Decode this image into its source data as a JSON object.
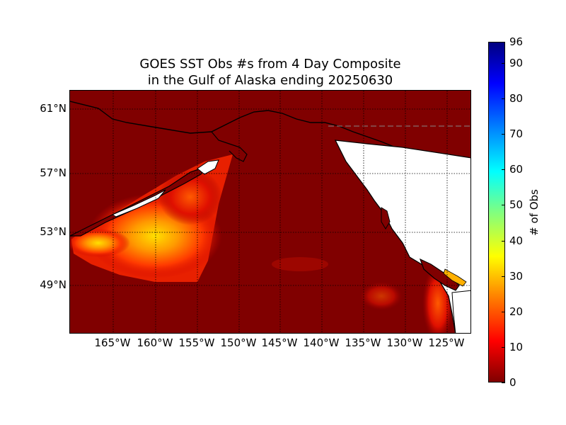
{
  "title": {
    "line1": "GOES SST Obs #s from 4 Day Composite",
    "line2": "in the Gulf of Alaska ending 20250630"
  },
  "map": {
    "lat_labels": [
      "61°N",
      "57°N",
      "53°N",
      "49°N"
    ],
    "lon_labels": [
      "165°W",
      "160°W",
      "155°W",
      "150°W",
      "145°W",
      "140°W",
      "135°W",
      "130°W",
      "125°W"
    ],
    "background_color": "#800000",
    "land_color": "#ffffff",
    "coast_color": "#000000"
  },
  "colorbar": {
    "label": "# of Obs",
    "ticks": [
      "0",
      "10",
      "20",
      "30",
      "40",
      "50",
      "60",
      "70",
      "80",
      "90",
      "96"
    ],
    "min": 0,
    "max": 96,
    "colormap": "jet_reversed"
  }
}
